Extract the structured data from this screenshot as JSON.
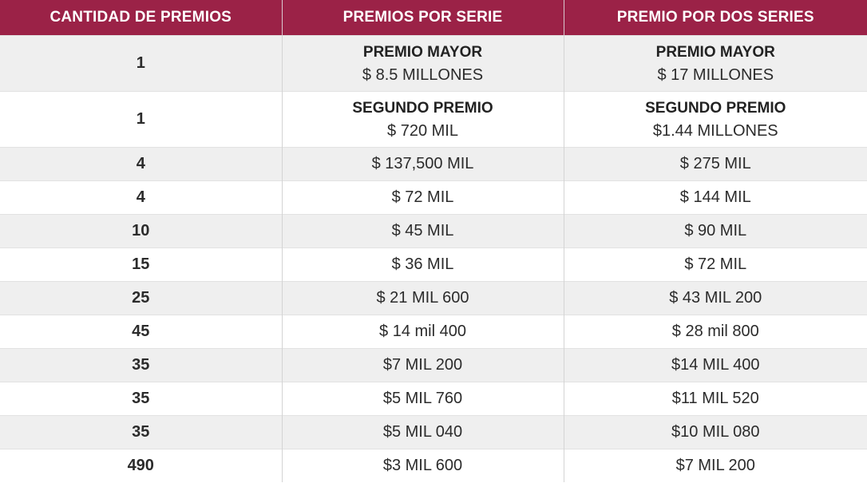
{
  "table": {
    "headers": [
      "CANTIDAD DE PREMIOS",
      "PREMIOS POR SERIE",
      "PREMIO POR DOS SERIES"
    ],
    "top_rows": [
      {
        "count": "1",
        "serie_name": "PREMIO MAYOR",
        "serie_amount": "$ 8.5 MILLONES",
        "dos_name": "PREMIO MAYOR",
        "dos_amount": "$ 17 MILLONES"
      },
      {
        "count": "1",
        "serie_name": "SEGUNDO PREMIO",
        "serie_amount": "$ 720 MIL",
        "dos_name": "SEGUNDO PREMIO",
        "dos_amount": "$1.44 MILLONES"
      }
    ],
    "rows": [
      {
        "count": "4",
        "serie": "$ 137,500 MIL",
        "dos": "$ 275 MIL"
      },
      {
        "count": "4",
        "serie": "$ 72 MIL",
        "dos": "$ 144 MIL"
      },
      {
        "count": "10",
        "serie": "$ 45 MIL",
        "dos": "$ 90 MIL"
      },
      {
        "count": "15",
        "serie": "$ 36 MIL",
        "dos": "$ 72 MIL"
      },
      {
        "count": "25",
        "serie": "$ 21 MIL 600",
        "dos": "$ 43 MIL 200"
      },
      {
        "count": "45",
        "serie": "$ 14 mil 400",
        "dos": "$ 28 mil 800"
      },
      {
        "count": "35",
        "serie": "$7 MIL 200",
        "dos": "$14 MIL 400"
      },
      {
        "count": "35",
        "serie": "$5 MIL 760",
        "dos": "$11 MIL 520"
      },
      {
        "count": "35",
        "serie": "$5 MIL 040",
        "dos": "$10 MIL 080"
      },
      {
        "count": "490",
        "serie": "$3 MIL 600",
        "dos": "$7 MIL 200"
      }
    ]
  },
  "colors": {
    "header_bg": "#9b2247",
    "header_text": "#ffffff",
    "row_shade": "#efefef"
  }
}
